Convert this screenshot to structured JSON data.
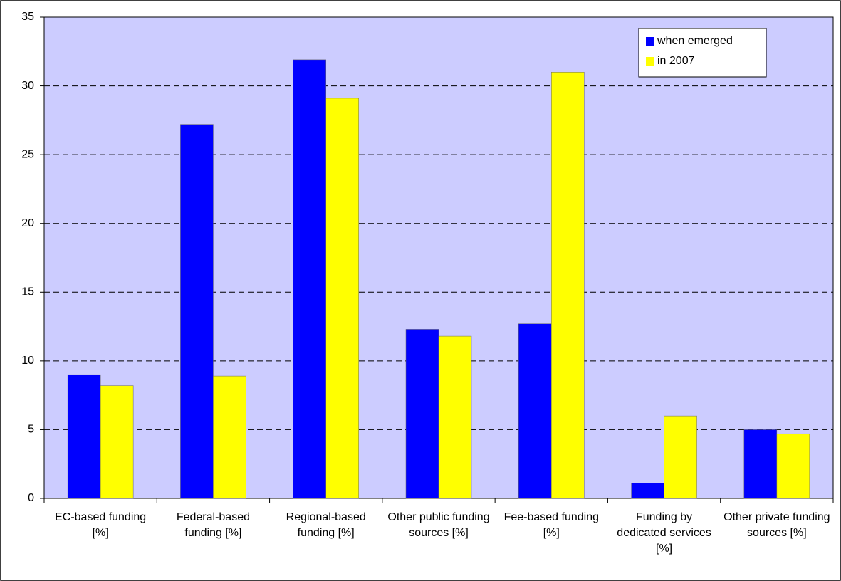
{
  "chart_data": {
    "type": "bar",
    "categories": [
      "EC-based funding [%]",
      "Federal-based funding [%]",
      "Regional-based funding [%]",
      "Other public funding sources [%]",
      "Fee-based funding [%]",
      "Funding by dedicated services [%]",
      "Other private funding sources [%]"
    ],
    "series": [
      {
        "name": "when emerged",
        "color": "#0000ff",
        "values": [
          9.0,
          27.2,
          31.9,
          12.3,
          12.7,
          1.1,
          5.0
        ]
      },
      {
        "name": "in 2007",
        "color": "#ffff00",
        "values": [
          8.2,
          8.9,
          29.1,
          11.8,
          31.0,
          6.0,
          4.7
        ]
      }
    ],
    "ylim": [
      0,
      35
    ],
    "yticks": [
      0,
      5,
      10,
      15,
      20,
      25,
      30,
      35
    ],
    "grid": true,
    "legend": "top-right"
  }
}
